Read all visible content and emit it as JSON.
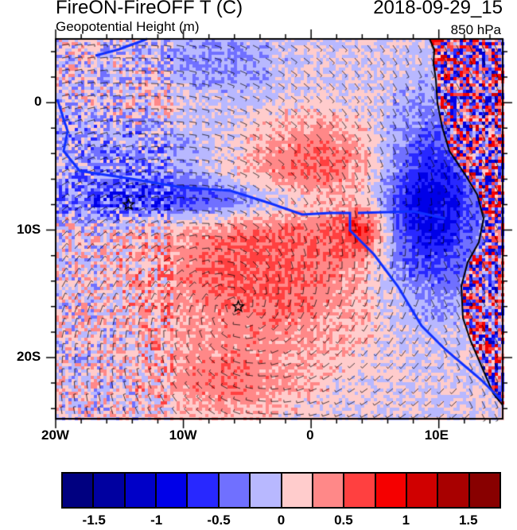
{
  "title": "FireON-FireOFF T (C)",
  "date": "2018-09-29_15",
  "subtitle": "Geopotential Height (m)",
  "level": "850 hPa",
  "axes": {
    "lon_labels": [
      "20W",
      "10W",
      "0",
      "10E"
    ],
    "lon_values": [
      -20,
      -10,
      0,
      10
    ],
    "lat_labels": [
      "0",
      "10S",
      "20S"
    ],
    "lat_values": [
      0,
      -10,
      -20
    ],
    "lon_range": [
      -20,
      15
    ],
    "lat_range": [
      -24.8,
      5
    ]
  },
  "colorbar": {
    "colors": [
      "#000080",
      "#0000a0",
      "#0000c8",
      "#0000e8",
      "#2828ff",
      "#7070ff",
      "#b8b8ff",
      "#ffcccc",
      "#ff8888",
      "#ff4040",
      "#f50000",
      "#d00000",
      "#a80000",
      "#880000"
    ],
    "labels": [
      "-1.5",
      "-1",
      "-0.5",
      "0",
      "0.5",
      "1",
      "1.5"
    ],
    "label_values": [
      -1.5,
      -1,
      -0.5,
      0,
      0.5,
      1,
      1.5
    ],
    "range": [
      -1.75,
      1.75
    ]
  },
  "markers": [
    {
      "name": "star",
      "lon": -14.3,
      "lat": -8
    },
    {
      "name": "star",
      "lon": -5.7,
      "lat": -16
    }
  ]
}
